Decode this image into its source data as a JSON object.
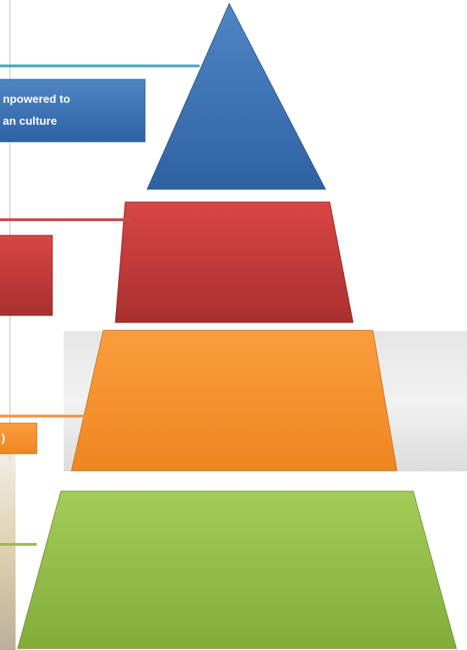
{
  "diagram": {
    "levels": [
      {
        "label_lines": [
          "npowered to",
          "an culture"
        ]
      },
      {
        "label_lines": []
      },
      {
        "label_lines": [
          ")"
        ]
      },
      {
        "label_lines": []
      }
    ]
  }
}
